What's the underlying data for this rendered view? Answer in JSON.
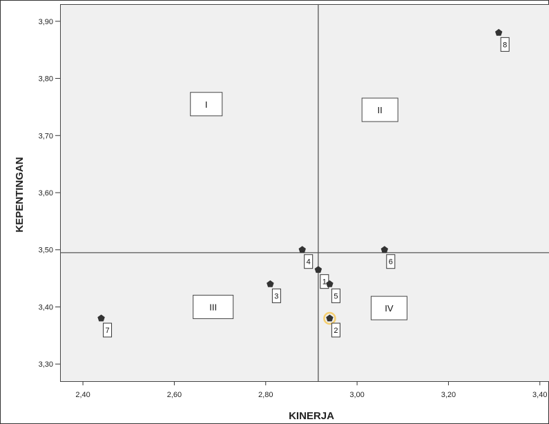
{
  "chart_data": {
    "type": "scatter",
    "title": "",
    "xlabel": "KINERJA",
    "ylabel": "KEPENTINGAN",
    "xlim": [
      2.35,
      3.42
    ],
    "ylim": [
      3.27,
      3.93
    ],
    "xticks": [
      {
        "value": 2.4,
        "label": "2,40"
      },
      {
        "value": 2.6,
        "label": "2,60"
      },
      {
        "value": 2.8,
        "label": "2,80"
      },
      {
        "value": 3.0,
        "label": "3,00"
      },
      {
        "value": 3.2,
        "label": "3,20"
      },
      {
        "value": 3.4,
        "label": "3,40"
      }
    ],
    "yticks": [
      {
        "value": 3.3,
        "label": "3,30"
      },
      {
        "value": 3.4,
        "label": "3,40"
      },
      {
        "value": 3.5,
        "label": "3,50"
      },
      {
        "value": 3.6,
        "label": "3,60"
      },
      {
        "value": 3.7,
        "label": "3,70"
      },
      {
        "value": 3.8,
        "label": "3,80"
      },
      {
        "value": 3.9,
        "label": "3,90"
      }
    ],
    "reference_lines": {
      "x": 2.915,
      "y": 3.495
    },
    "quadrants": [
      {
        "label": "I",
        "x": 2.67,
        "y": 3.755
      },
      {
        "label": "II",
        "x": 3.05,
        "y": 3.745
      },
      {
        "label": "III",
        "x": 2.685,
        "y": 3.4
      },
      {
        "label": "IV",
        "x": 3.07,
        "y": 3.398
      }
    ],
    "points": [
      {
        "label": "1",
        "x": 2.915,
        "y": 3.465
      },
      {
        "label": "2",
        "x": 2.94,
        "y": 3.38,
        "highlight": true
      },
      {
        "label": "3",
        "x": 2.81,
        "y": 3.44
      },
      {
        "label": "4",
        "x": 2.88,
        "y": 3.5
      },
      {
        "label": "5",
        "x": 2.94,
        "y": 3.44
      },
      {
        "label": "6",
        "x": 3.06,
        "y": 3.5
      },
      {
        "label": "7",
        "x": 2.44,
        "y": 3.38
      },
      {
        "label": "8",
        "x": 3.31,
        "y": 3.88
      }
    ],
    "grid": false,
    "legend": "none",
    "colors": {
      "plot_background": "#f0f0f0",
      "reference_line": "#555555",
      "marker": "#333333",
      "highlight": "#f5cf70",
      "label_box": "#ffffff"
    }
  }
}
